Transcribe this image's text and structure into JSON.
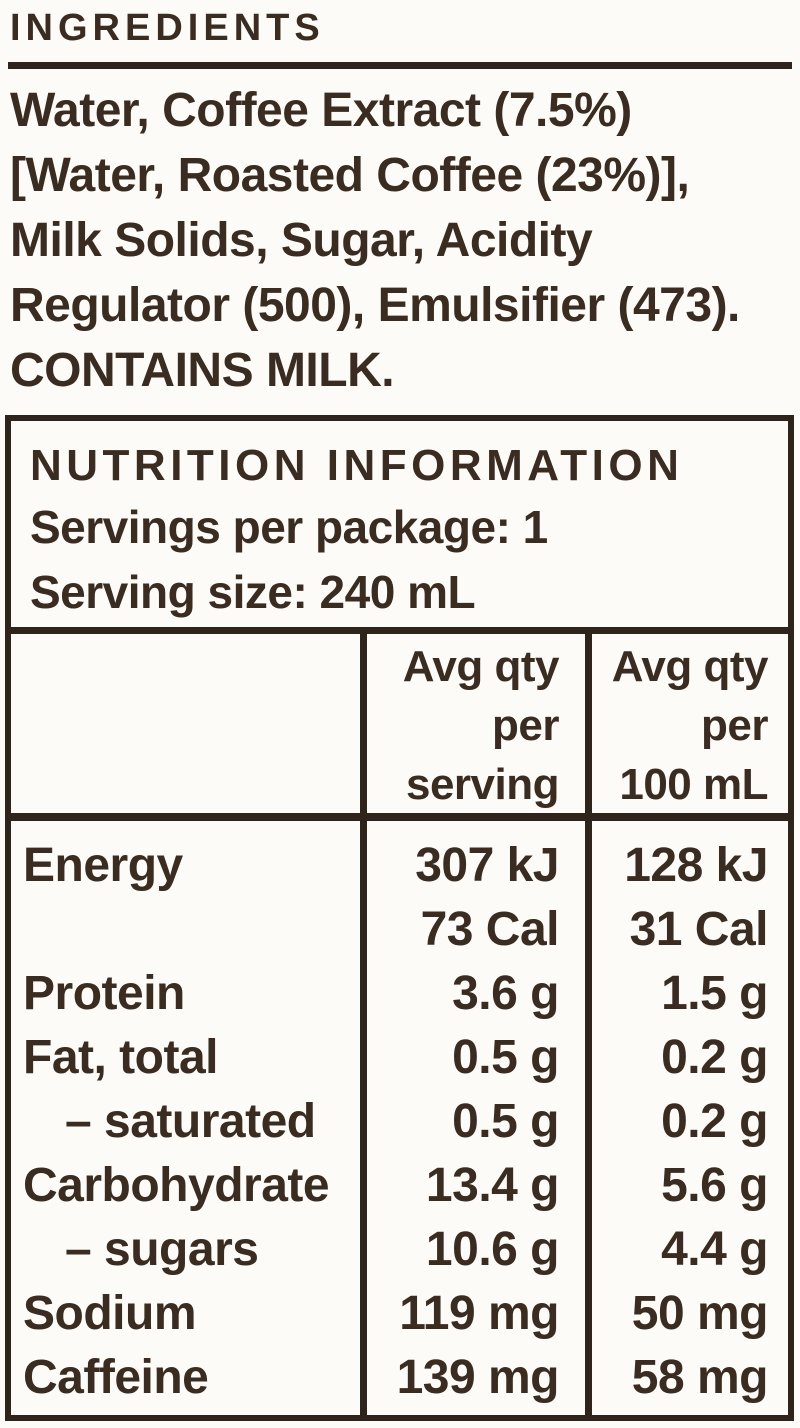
{
  "colors": {
    "text": "#3a2c21",
    "rule": "#2e241c",
    "background": "#fcfbf8"
  },
  "ingredients": {
    "heading": "INGREDIENTS",
    "lines": [
      "Water, Coffee Extract (7.5%)",
      "[Water, Roasted Coffee (23%)],",
      "Milk Solids, Sugar, Acidity",
      "Regulator (500), Emulsifier (473)."
    ],
    "allergen_statement": "CONTAINS MILK."
  },
  "nutrition": {
    "title": "NUTRITION INFORMATION",
    "servings_per_package": "Servings per package: 1",
    "serving_size": "Serving size: 240 mL",
    "columns": {
      "per_serving": [
        "Avg qty",
        "per",
        "serving"
      ],
      "per_100ml": [
        "Avg qty",
        "per",
        "100 mL"
      ]
    },
    "rows": [
      {
        "label": "Energy",
        "per_serving": "307 kJ",
        "per_100ml": "128 kJ",
        "indent": false
      },
      {
        "label": "",
        "per_serving": "73 Cal",
        "per_100ml": "31 Cal",
        "indent": false
      },
      {
        "label": "Protein",
        "per_serving": "3.6 g",
        "per_100ml": "1.5 g",
        "indent": false
      },
      {
        "label": "Fat, total",
        "per_serving": "0.5 g",
        "per_100ml": "0.2 g",
        "indent": false
      },
      {
        "label": "– saturated",
        "per_serving": "0.5 g",
        "per_100ml": "0.2 g",
        "indent": true
      },
      {
        "label": "Carbohydrate",
        "per_serving": "13.4 g",
        "per_100ml": "5.6 g",
        "indent": false
      },
      {
        "label": "– sugars",
        "per_serving": "10.6 g",
        "per_100ml": "4.4 g",
        "indent": true
      },
      {
        "label": "Sodium",
        "per_serving": "119 mg",
        "per_100ml": "50 mg",
        "indent": false
      },
      {
        "label": "Caffeine",
        "per_serving": "139 mg",
        "per_100ml": "58 mg",
        "indent": false
      }
    ]
  }
}
